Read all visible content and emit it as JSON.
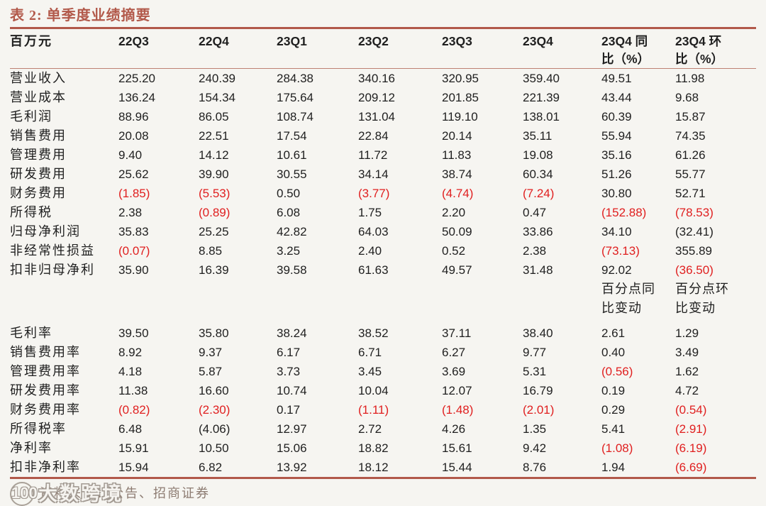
{
  "title": "表 2:  单季度业绩摘要",
  "colors": {
    "accent_rule": "#b2594a",
    "negative_red": "#e01f1f",
    "text": "#1f1f1f",
    "background": "#f6f5f1"
  },
  "table": {
    "unit_label": "百万元",
    "columns": [
      "22Q3",
      "22Q4",
      "23Q1",
      "23Q2",
      "23Q3",
      "23Q4",
      "23Q4 同\n比（%）",
      "23Q4 环\n比（%）"
    ],
    "rows": [
      {
        "label": "营业收入",
        "values": [
          "225.20",
          "240.39",
          "284.38",
          "340.16",
          "320.95",
          "359.40",
          "49.51",
          "11.98"
        ]
      },
      {
        "label": "营业成本",
        "values": [
          "136.24",
          "154.34",
          "175.64",
          "209.12",
          "201.85",
          "221.39",
          "43.44",
          "9.68"
        ]
      },
      {
        "label": "毛利润",
        "values": [
          "88.96",
          "86.05",
          "108.74",
          "131.04",
          "119.10",
          "138.01",
          "60.39",
          "15.87"
        ]
      },
      {
        "label": "销售费用",
        "values": [
          "20.08",
          "22.51",
          "17.54",
          "22.84",
          "20.14",
          "35.11",
          "55.94",
          "74.35"
        ]
      },
      {
        "label": "管理费用",
        "values": [
          "9.40",
          "14.12",
          "10.61",
          "11.72",
          "11.83",
          "19.08",
          "35.16",
          "61.26"
        ]
      },
      {
        "label": "研发费用",
        "values": [
          "25.62",
          "39.90",
          "30.55",
          "34.14",
          "38.74",
          "60.34",
          "51.26",
          "55.77"
        ]
      },
      {
        "label": "财务费用",
        "values": [
          "(1.85)",
          "(5.53)",
          "0.50",
          "(3.77)",
          "(4.74)",
          "(7.24)",
          "30.80",
          "52.71"
        ],
        "red": [
          1,
          1,
          0,
          1,
          1,
          1,
          0,
          0
        ]
      },
      {
        "label": "所得税",
        "values": [
          "2.38",
          "(0.89)",
          "6.08",
          "1.75",
          "2.20",
          "0.47",
          "(152.88)",
          "(78.53)"
        ],
        "red": [
          0,
          1,
          0,
          0,
          0,
          0,
          1,
          1
        ]
      },
      {
        "label": "归母净利润",
        "values": [
          "35.83",
          "25.25",
          "42.82",
          "64.03",
          "50.09",
          "33.86",
          "34.10",
          "(32.41)"
        ]
      },
      {
        "label": "非经常性损益",
        "values": [
          "(0.07)",
          "8.85",
          "3.25",
          "2.40",
          "0.52",
          "2.38",
          "(73.13)",
          "355.89"
        ],
        "red": [
          1,
          0,
          0,
          0,
          0,
          0,
          1,
          0
        ]
      },
      {
        "label": "扣非归母净利",
        "values": [
          "35.90",
          "16.39",
          "39.58",
          "61.63",
          "49.57",
          "31.48",
          "92.02",
          "(36.50)"
        ],
        "red": [
          0,
          0,
          0,
          0,
          0,
          0,
          0,
          1
        ]
      },
      {
        "type": "note",
        "label": "",
        "values": [
          "",
          "",
          "",
          "",
          "",
          "",
          "百分点同\n比变动",
          "百分点环\n比变动"
        ]
      },
      {
        "type": "gap"
      },
      {
        "label": "毛利率",
        "values": [
          "39.50",
          "35.80",
          "38.24",
          "38.52",
          "37.11",
          "38.40",
          "2.61",
          "1.29"
        ]
      },
      {
        "label": "销售费用率",
        "values": [
          "8.92",
          "9.37",
          "6.17",
          "6.71",
          "6.27",
          "9.77",
          "0.40",
          "3.49"
        ]
      },
      {
        "label": "管理费用率",
        "values": [
          "4.18",
          "5.87",
          "3.73",
          "3.45",
          "3.69",
          "5.31",
          "(0.56)",
          "1.62"
        ],
        "red": [
          0,
          0,
          0,
          0,
          0,
          0,
          1,
          0
        ]
      },
      {
        "label": "研发费用率",
        "values": [
          "11.38",
          "16.60",
          "10.74",
          "10.04",
          "12.07",
          "16.79",
          "0.19",
          "4.72"
        ]
      },
      {
        "label": "财务费用率",
        "values": [
          "(0.82)",
          "(2.30)",
          "0.17",
          "(1.11)",
          "(1.48)",
          "(2.01)",
          "0.29",
          "(0.54)"
        ],
        "red": [
          1,
          1,
          0,
          1,
          1,
          1,
          0,
          1
        ]
      },
      {
        "label": "所得税率",
        "values": [
          "6.48",
          "(4.06)",
          "12.97",
          "2.72",
          "4.26",
          "1.35",
          "5.41",
          "(2.91)"
        ],
        "red": [
          0,
          0,
          0,
          0,
          0,
          0,
          0,
          1
        ]
      },
      {
        "label": "净利率",
        "values": [
          "15.91",
          "10.50",
          "15.06",
          "18.82",
          "15.61",
          "9.42",
          "(1.08)",
          "(6.19)"
        ],
        "red": [
          0,
          0,
          0,
          0,
          0,
          0,
          1,
          1
        ]
      },
      {
        "label": "扣非净利率",
        "values": [
          "15.94",
          "6.82",
          "13.92",
          "18.12",
          "15.44",
          "8.76",
          "1.94",
          "(6.69)"
        ],
        "red": [
          0,
          0,
          0,
          0,
          0,
          0,
          0,
          1
        ]
      }
    ]
  },
  "footer": {
    "source_prefix": "资料来源：",
    "source_text": "公告、招商证券",
    "watermark_logo": "100",
    "watermark_text": "大数跨境"
  }
}
